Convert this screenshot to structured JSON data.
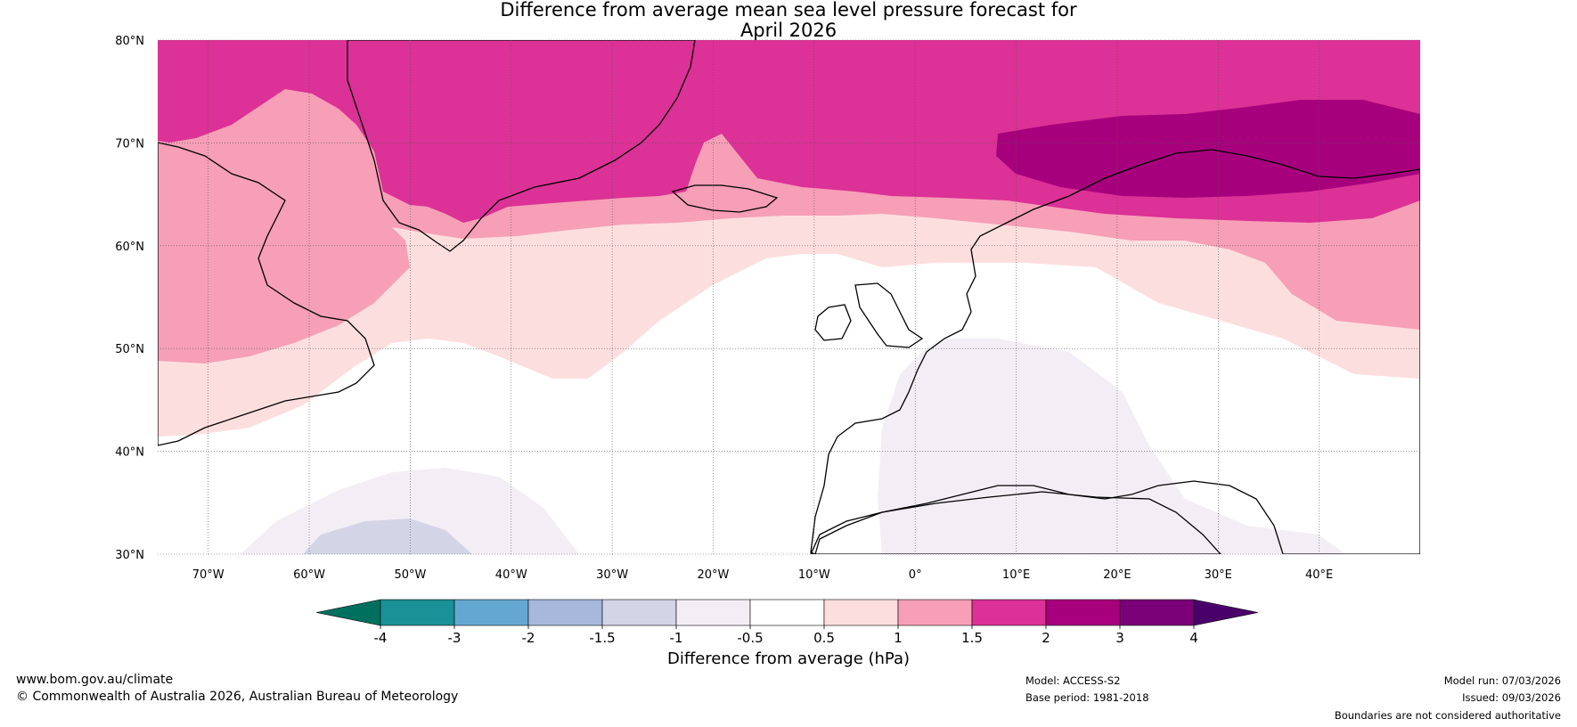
{
  "title": {
    "line1": "Difference from average mean sea level pressure forecast for",
    "line2": "April 2026"
  },
  "map": {
    "region": "North Atlantic and Europe",
    "lat_labels": [
      "80°N",
      "70°N",
      "60°N",
      "50°N",
      "40°N",
      "30°N"
    ],
    "lon_labels": [
      "70°W",
      "60°W",
      "50°W",
      "40°W",
      "30°W",
      "20°W",
      "10°W",
      "0°",
      "10°E",
      "20°E",
      "30°E",
      "40°E"
    ],
    "lat_range": [
      30,
      80
    ],
    "lon_range": [
      -75,
      50
    ],
    "colors": {
      "anom_2_3": "#a7007d",
      "anom_1_5_2": "#dc3196",
      "anom_1_1_5": "#f69fb7",
      "anom_0_5_1": "#fddede",
      "neutral": "#ffffff",
      "anom_m1_m0_5": "#f3eef5",
      "anom_m1_5_m1": "#d4d4e7",
      "coast": "#000000",
      "borders": "#808080",
      "grid": "#555555"
    }
  },
  "colorbar": {
    "title": "Difference from average (hPa)",
    "ticks": [
      "-4",
      "-3",
      "-2",
      "-1.5",
      "-1",
      "-0.5",
      "0.5",
      "1",
      "1.5",
      "2",
      "3",
      "4"
    ],
    "colors": [
      "#00705e",
      "#1a9196",
      "#64a8d2",
      "#a7b8dc",
      "#d4d4e7",
      "#f3eef5",
      "#ffffff",
      "#fddede",
      "#f69fb7",
      "#dc3196",
      "#a7007d",
      "#7a0177",
      "#4a006a"
    ]
  },
  "footer": {
    "website": "www.bom.gov.au/climate",
    "copyright": "© Commonwealth of Australia 2026, Australian Bureau of Meteorology",
    "model": "Model: ACCESS-S2",
    "base_period": "Base period: 1981-2018",
    "model_run": "Model run: 07/03/2026",
    "issued": "Issued: 09/03/2026",
    "disclaimer": "Boundaries are not considered authoritative"
  }
}
